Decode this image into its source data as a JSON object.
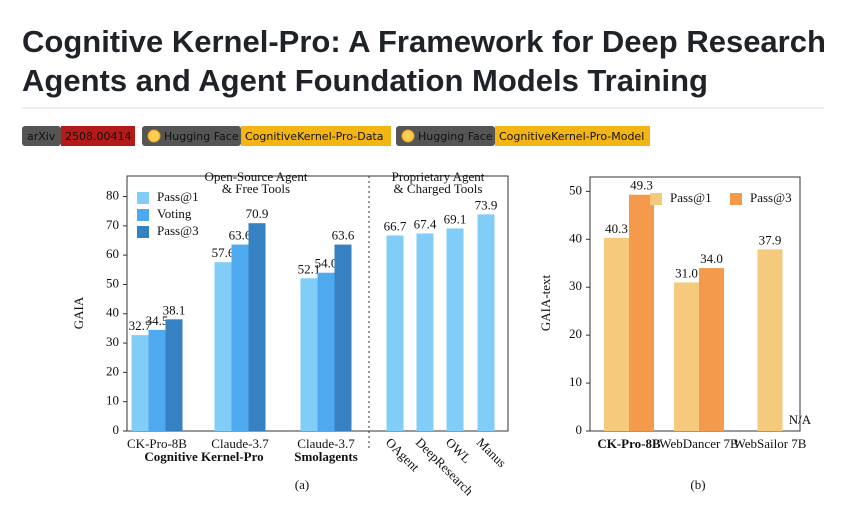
{
  "header": {
    "title": "Cognitive Kernel-Pro: A Framework for Deep Research Agents and Agent Foundation Models Training"
  },
  "badges": [
    {
      "label": "arXiv",
      "value": "2508.00414"
    },
    {
      "label": "Hugging Face",
      "value": "CognitiveKernel-Pro-Data"
    },
    {
      "label": "Hugging Face",
      "value": "CognitiveKernel-Pro-Model"
    }
  ],
  "chart_data": [
    {
      "type": "bar",
      "ylabel": "GAIA",
      "caption": "(a)",
      "sections": [
        [
          "Open-Source Agent",
          "& Free Tools"
        ],
        [
          "Proprietary Agent",
          "& Charged Tools"
        ]
      ],
      "groups": [
        "Cognitive Kernel-Pro",
        "Smolagents"
      ],
      "categories": [
        "CK-Pro-8B",
        "Claude-3.7",
        "Claude-3.7",
        "OAgent",
        "DeepResearch",
        "OWL",
        "Manus"
      ],
      "series": [
        {
          "name": "Pass@1",
          "color": "#82cdf8",
          "values": [
            32.7,
            57.6,
            52.1,
            66.7,
            67.4,
            69.1,
            73.9
          ],
          "value_labels": [
            "32.7",
            "57.6",
            "52.1",
            "66.7",
            "67.4",
            "69.1",
            "73.9"
          ]
        },
        {
          "name": "Voting",
          "color": "#4ea9ee",
          "values": [
            34.5,
            63.6,
            54.0,
            null,
            null,
            null,
            null
          ],
          "value_labels": [
            "34.5",
            "63.6",
            "54.0",
            null,
            null,
            null,
            null
          ]
        },
        {
          "name": "Pass@3",
          "color": "#3581c2",
          "values": [
            38.1,
            70.9,
            63.6,
            null,
            null,
            null,
            null
          ],
          "value_labels": [
            "38.1",
            "70.9",
            "63.6",
            null,
            null,
            null,
            null
          ]
        }
      ],
      "ylim": [
        0,
        87
      ],
      "yticks": [
        0,
        10,
        20,
        30,
        40,
        50,
        60,
        70,
        80
      ],
      "legend": "upper-left"
    },
    {
      "type": "bar",
      "ylabel": "GAIA-text",
      "caption": "(b)",
      "categories": [
        "CK-Pro-8B",
        "WebDancer 7B",
        "WebSailor 7B"
      ],
      "series": [
        {
          "name": "Pass@1",
          "color": "#f5ca7c",
          "values": [
            40.3,
            31.0,
            37.9
          ],
          "value_labels": [
            "40.3",
            "31.0",
            "37.9"
          ]
        },
        {
          "name": "Pass@3",
          "color": "#f39a4c",
          "values": [
            49.3,
            34.0,
            null
          ],
          "value_labels": [
            "49.3",
            "34.0",
            null
          ]
        }
      ],
      "annotation": "N/A",
      "ylim": [
        0,
        53
      ],
      "yticks": [
        0,
        10,
        20,
        30,
        40,
        50
      ],
      "legend": "upper-center"
    }
  ]
}
